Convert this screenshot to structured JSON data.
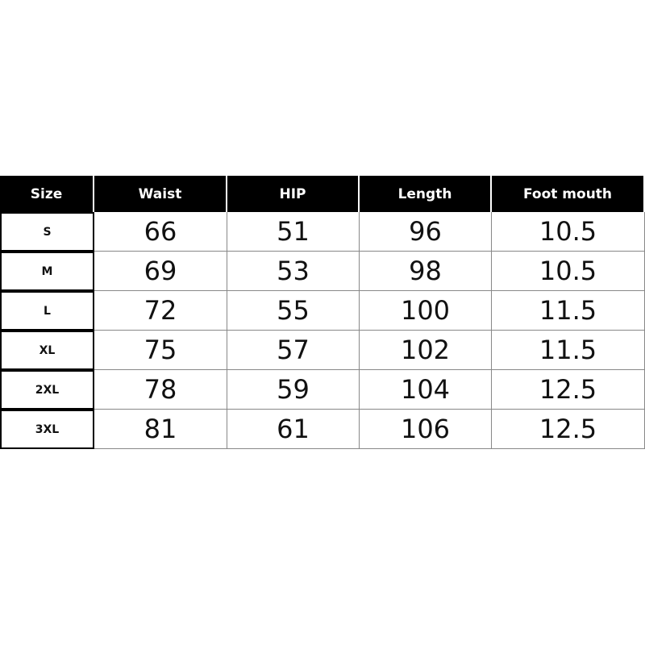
{
  "table": {
    "header": [
      "Size",
      "Waist",
      "HIP",
      "Length",
      "Foot mouth"
    ],
    "rows": [
      [
        "S",
        "66",
        "51",
        "96",
        "10.5"
      ],
      [
        "M",
        "69",
        "53",
        "98",
        "10.5"
      ],
      [
        "L",
        "72",
        "55",
        "100",
        "11.5"
      ],
      [
        "XL",
        "75",
        "57",
        "102",
        "11.5"
      ],
      [
        "2XL",
        "78",
        "59",
        "104",
        "12.5"
      ],
      [
        "3XL",
        "81",
        "61",
        "106",
        "12.5"
      ]
    ]
  }
}
